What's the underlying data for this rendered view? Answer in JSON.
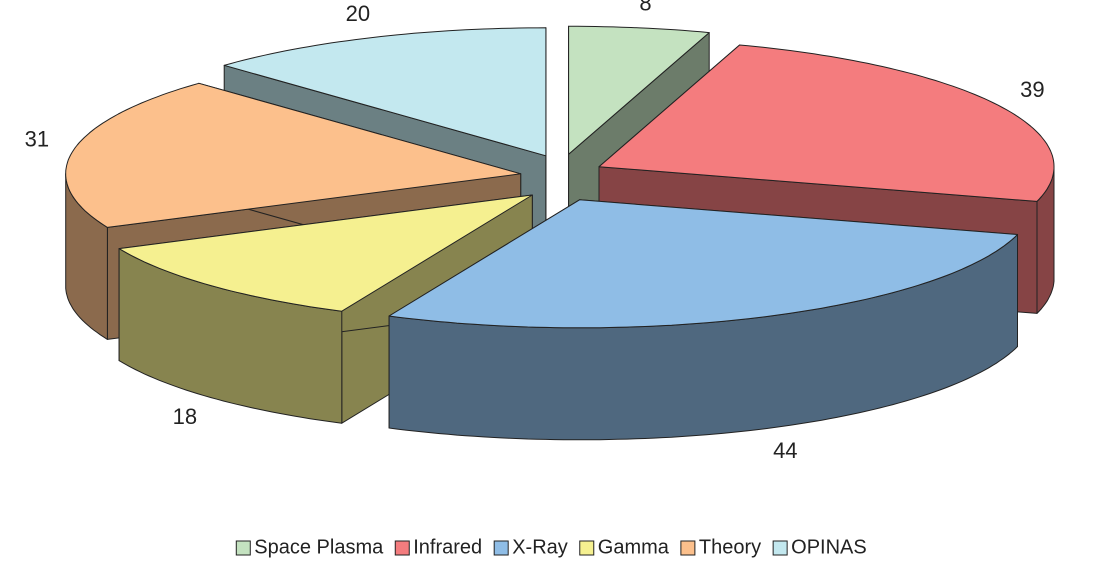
{
  "chart_data": {
    "type": "pie",
    "categories": [
      "Space Plasma",
      "Infrared",
      "X-Ray",
      "Gamma",
      "Theory",
      "OPINAS"
    ],
    "values": [
      8,
      39,
      44,
      18,
      31,
      20
    ],
    "colors": [
      "#c4e2c0",
      "#f47c7e",
      "#8fbde6",
      "#f5f090",
      "#fcc08c",
      "#c3e8ef"
    ],
    "legend": "bottom"
  }
}
